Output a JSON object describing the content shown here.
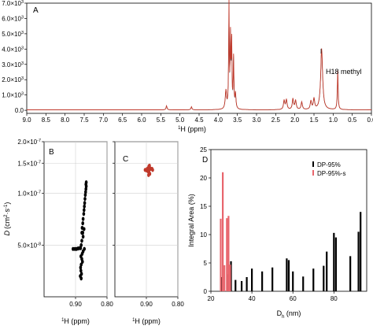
{
  "chart_data": [
    {
      "id": "A",
      "type": "line",
      "panel_label": "A",
      "xlabel_sup": "1",
      "xlabel": "H (ppm)",
      "xlim": [
        9.0,
        0.0
      ],
      "x_ticks": [
        "9.0",
        "8.5",
        "8.0",
        "7.5",
        "7.0",
        "6.5",
        "6.0",
        "5.5",
        "5.0",
        "4.5",
        "4.0",
        "3.5",
        "3.0",
        "2.5",
        "2.0",
        "1.5",
        "1.0",
        "0.5",
        "0.0"
      ],
      "ylim": [
        -200,
        7000
      ],
      "y_ticks": [
        {
          "v": 0,
          "m": "0.0"
        },
        {
          "v": 1000,
          "m": "1.0×10",
          "e": "3"
        },
        {
          "v": 2000,
          "m": "2.0×10",
          "e": "3"
        },
        {
          "v": 3000,
          "m": "3.0×10",
          "e": "3"
        },
        {
          "v": 4000,
          "m": "4.0×10",
          "e": "3"
        },
        {
          "v": 5000,
          "m": "5.0×10",
          "e": "3"
        },
        {
          "v": 6000,
          "m": "6.0×10",
          "e": "3"
        },
        {
          "v": 7000,
          "m": "7.0×10",
          "e": "3"
        }
      ],
      "annotation": "H18 methyl",
      "colors": {
        "series": "#c0392b",
        "overlay": "#1a1a1a"
      },
      "peaks": [
        {
          "x": 5.35,
          "y": 260,
          "w": 0.015
        },
        {
          "x": 4.7,
          "y": 200,
          "w": 0.015
        },
        {
          "x": 3.8,
          "y": 1200,
          "w": 0.02
        },
        {
          "x": 3.72,
          "y": 6800,
          "w": 0.01
        },
        {
          "x": 3.68,
          "y": 4500,
          "w": 0.01
        },
        {
          "x": 3.65,
          "y": 4200,
          "w": 0.01
        },
        {
          "x": 3.6,
          "y": 3300,
          "w": 0.01
        },
        {
          "x": 3.55,
          "y": 1000,
          "w": 0.015
        },
        {
          "x": 2.28,
          "y": 600,
          "w": 0.02
        },
        {
          "x": 2.22,
          "y": 650,
          "w": 0.02
        },
        {
          "x": 2.05,
          "y": 700,
          "w": 0.02
        },
        {
          "x": 1.98,
          "y": 600,
          "w": 0.02
        },
        {
          "x": 1.82,
          "y": 500,
          "w": 0.02
        },
        {
          "x": 1.58,
          "y": 550,
          "w": 0.02
        },
        {
          "x": 1.5,
          "y": 700,
          "w": 0.02
        },
        {
          "x": 1.3,
          "y": 4000,
          "w": 0.03
        },
        {
          "x": 0.88,
          "y": 2550,
          "w": 0.012
        }
      ]
    },
    {
      "id": "B",
      "type": "scatter",
      "panel_label": "B",
      "xlabel_sup": "1",
      "xlabel": "H (ppm)",
      "xlim": [
        1.0,
        0.8
      ],
      "x_ticks": [
        "0.90",
        "0.80"
      ],
      "ylabel": "D",
      "ylabel_unit": "(cm",
      "ylabel_sup1": "2",
      "ylabel_mid": "·s",
      "ylabel_sup2": "-1",
      "ylabel_close": ")",
      "ylim": [
        2.5e-08,
        2e-07
      ],
      "y_ticks": [
        {
          "v": 5e-08,
          "m": "5.0×10",
          "e": "-8"
        },
        {
          "v": 1e-07,
          "m": "1.0×10",
          "e": "-7"
        },
        {
          "v": 1.5e-07,
          "m": "1.5×10",
          "e": "-7"
        },
        {
          "v": 2e-07,
          "m": "2.0×10",
          "e": "-7"
        }
      ],
      "colors": {
        "series": "#000000"
      },
      "points": [
        [
          0.866,
          1.16e-07
        ],
        [
          0.867,
          1.13e-07
        ],
        [
          0.866,
          1.1e-07
        ],
        [
          0.867,
          1.06e-07
        ],
        [
          0.868,
          1.02e-07
        ],
        [
          0.869,
          9.8e-08
        ],
        [
          0.87,
          9.3e-08
        ],
        [
          0.871,
          8.8e-08
        ],
        [
          0.872,
          8.4e-08
        ],
        [
          0.873,
          8e-08
        ],
        [
          0.874,
          7.6e-08
        ],
        [
          0.876,
          7.1e-08
        ],
        [
          0.877,
          6.7e-08
        ],
        [
          0.879,
          6.3e-08
        ],
        [
          0.88,
          5.9e-08
        ],
        [
          0.876,
          5.6e-08
        ],
        [
          0.88,
          5.3e-08
        ],
        [
          0.882,
          5e-08
        ],
        [
          0.884,
          4.8e-08
        ],
        [
          0.887,
          4.8e-08
        ],
        [
          0.892,
          4.78e-08
        ],
        [
          0.897,
          4.75e-08
        ],
        [
          0.902,
          4.75e-08
        ],
        [
          0.908,
          4.75e-08
        ],
        [
          0.872,
          4.75e-08
        ],
        [
          0.876,
          4.6e-08
        ],
        [
          0.879,
          4.45e-08
        ],
        [
          0.883,
          4.3e-08
        ],
        [
          0.88,
          4.15e-08
        ],
        [
          0.878,
          4e-08
        ],
        [
          0.882,
          3.85e-08
        ],
        [
          0.884,
          3.7e-08
        ],
        [
          0.883,
          3.55e-08
        ],
        [
          0.881,
          3.4e-08
        ],
        [
          0.885,
          3.3e-08
        ],
        [
          0.882,
          3.2e-08
        ],
        [
          0.877,
          5.9e-08
        ],
        [
          0.873,
          6.2e-08
        ]
      ]
    },
    {
      "id": "C",
      "type": "scatter",
      "panel_label": "C",
      "xlabel_sup": "1",
      "xlabel": "H (ppm)",
      "xlim": [
        1.0,
        0.8
      ],
      "x_ticks": [
        "0.90",
        "0.80"
      ],
      "ylim": [
        2.5e-08,
        2e-07
      ],
      "colors": {
        "series": "#c0392b"
      },
      "points": [
        [
          0.895,
          1.4e-07
        ],
        [
          0.892,
          1.36e-07
        ],
        [
          0.888,
          1.4e-07
        ],
        [
          0.886,
          1.39e-07
        ],
        [
          0.891,
          1.32e-07
        ],
        [
          0.893,
          1.28e-07
        ],
        [
          0.899,
          1.36e-07
        ],
        [
          0.901,
          1.37e-07
        ],
        [
          0.904,
          1.37e-07
        ],
        [
          0.892,
          1.44e-07
        ],
        [
          0.89,
          1.45e-07
        ],
        [
          0.882,
          1.39e-07
        ],
        [
          0.88,
          1.37e-07
        ],
        [
          0.889,
          1.3e-07
        ],
        [
          0.894,
          1.34e-07
        ],
        [
          0.897,
          1.39e-07
        ]
      ]
    },
    {
      "id": "D",
      "type": "bar",
      "panel_label": "D",
      "xlabel": "D",
      "xlabel_sub": "h",
      "xlabel_unit": " (nm)",
      "ylabel": "Integral Area (%)",
      "xlim": [
        20,
        96
      ],
      "x_ticks": [
        20,
        40,
        60,
        80
      ],
      "ylim": [
        0,
        25
      ],
      "y_ticks": [
        0,
        5,
        10,
        15,
        20,
        25
      ],
      "colors": {
        "s1": "#000000",
        "s2": "#e8666d"
      },
      "series": [
        {
          "name": "DP-95%",
          "x": [
            25.5,
            28.3,
            29.8,
            32.0,
            35.0,
            37.5,
            40.0,
            45.0,
            50.0,
            57.0,
            58.0,
            60.0,
            65.0,
            70.0,
            75.0,
            76.5,
            80.0,
            81.0,
            88.0,
            92.0,
            93.0
          ],
          "values": [
            2.5,
            3.0,
            5.3,
            2.0,
            1.8,
            2.5,
            4.0,
            3.5,
            4.2,
            5.8,
            5.5,
            3.5,
            2.6,
            4.0,
            4.5,
            7.0,
            10.3,
            9.5,
            6.2,
            10.5,
            14.0
          ]
        },
        {
          "name": "DP-95%-s",
          "x": [
            24.8,
            25.8,
            26.6,
            27.8,
            28.6,
            29.4
          ],
          "values": [
            12.8,
            21.0,
            4.6,
            12.9,
            13.3,
            4.7
          ]
        }
      ]
    }
  ]
}
